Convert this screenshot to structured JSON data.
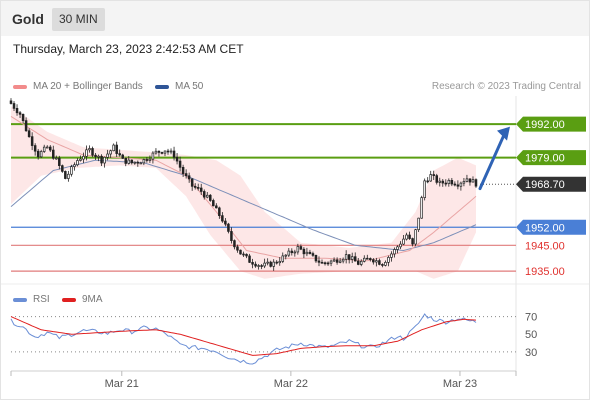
{
  "header": {
    "symbol": "Gold",
    "timeframe": "30 MIN",
    "datetime": "Thursday, March 23, 2023 2:42:53 AM CET"
  },
  "legend": {
    "items": [
      {
        "label": "MA 20 + Bollinger Bands",
        "color": "#f28b8b"
      },
      {
        "label": "MA 50",
        "color": "#2f5597"
      }
    ],
    "credit": "Research © 2023 Trading Central"
  },
  "colors": {
    "resistance": "#5a9e12",
    "support": "#4a7fd6",
    "support2": "#e07b7b",
    "current": "#333333",
    "bb_fill": "#fde3e3",
    "ma20": "#e9a4a4",
    "ma50": "#7c8fb8",
    "candle": "#222222",
    "arrow": "#2f63b5"
  },
  "chart_data": [
    {
      "type": "candlestick",
      "title": "",
      "ylim": [
        1930,
        2006
      ],
      "x_ticks": [
        "Mar 21",
        "Mar 22",
        "Mar 23"
      ],
      "levels": [
        {
          "value": 1992.0,
          "label": "1992.00",
          "kind": "resistance"
        },
        {
          "value": 1979.0,
          "label": "1979.00",
          "kind": "resistance"
        },
        {
          "value": 1968.7,
          "label": "1968.70",
          "kind": "current"
        },
        {
          "value": 1952.0,
          "label": "1952.00",
          "kind": "support"
        },
        {
          "value": 1945.0,
          "label": "1945.00",
          "kind": "support2"
        },
        {
          "value": 1935.0,
          "label": "1935.00",
          "kind": "support2"
        }
      ],
      "close_key": [
        [
          0,
          2000
        ],
        [
          3,
          1996
        ],
        [
          6,
          1987
        ],
        [
          9,
          1980
        ],
        [
          12,
          1983
        ],
        [
          15,
          1978
        ],
        [
          18,
          1971
        ],
        [
          22,
          1978
        ],
        [
          26,
          1982
        ],
        [
          30,
          1978
        ],
        [
          34,
          1983
        ],
        [
          37,
          1978
        ],
        [
          40,
          1977
        ],
        [
          44,
          1978
        ],
        [
          48,
          1981
        ],
        [
          51,
          1982
        ],
        [
          54,
          1980
        ],
        [
          57,
          1973
        ],
        [
          60,
          1968
        ],
        [
          63,
          1966
        ],
        [
          66,
          1962
        ],
        [
          70,
          1955
        ],
        [
          73,
          1947
        ],
        [
          76,
          1942
        ],
        [
          79,
          1939
        ],
        [
          83,
          1937
        ],
        [
          87,
          1938
        ],
        [
          91,
          1941
        ],
        [
          95,
          1944
        ],
        [
          99,
          1941
        ],
        [
          103,
          1938
        ],
        [
          107,
          1939
        ],
        [
          111,
          1941
        ],
        [
          115,
          1938
        ],
        [
          119,
          1940
        ],
        [
          123,
          1938
        ],
        [
          127,
          1943
        ],
        [
          131,
          1949
        ],
        [
          133,
          1945
        ],
        [
          135,
          1956
        ],
        [
          137,
          1970
        ],
        [
          139,
          1972
        ],
        [
          142,
          1969
        ],
        [
          145,
          1970
        ],
        [
          148,
          1969
        ],
        [
          151,
          1971
        ],
        [
          154,
          1969
        ]
      ],
      "ma20_key": [
        [
          0,
          1995
        ],
        [
          12,
          1986
        ],
        [
          24,
          1980
        ],
        [
          36,
          1979
        ],
        [
          48,
          1978
        ],
        [
          58,
          1972
        ],
        [
          68,
          1958
        ],
        [
          78,
          1943
        ],
        [
          90,
          1940
        ],
        [
          104,
          1940
        ],
        [
          118,
          1939
        ],
        [
          132,
          1943
        ],
        [
          140,
          1950
        ],
        [
          154,
          1964
        ]
      ],
      "ma50_key": [
        [
          0,
          1960
        ],
        [
          14,
          1974
        ],
        [
          28,
          1978
        ],
        [
          44,
          1977
        ],
        [
          58,
          1972
        ],
        [
          72,
          1965
        ],
        [
          86,
          1958
        ],
        [
          100,
          1951
        ],
        [
          114,
          1945
        ],
        [
          130,
          1943
        ],
        [
          140,
          1946
        ],
        [
          154,
          1953
        ]
      ],
      "bb_upper_key": [
        [
          0,
          1999
        ],
        [
          12,
          1989
        ],
        [
          24,
          1983
        ],
        [
          36,
          1982
        ],
        [
          48,
          1981
        ],
        [
          58,
          1980
        ],
        [
          68,
          1978
        ],
        [
          76,
          1972
        ],
        [
          84,
          1958
        ],
        [
          96,
          1946
        ],
        [
          112,
          1944
        ],
        [
          126,
          1946
        ],
        [
          134,
          1958
        ],
        [
          140,
          1974
        ],
        [
          148,
          1979
        ],
        [
          154,
          1976
        ]
      ],
      "bb_lower_key": [
        [
          0,
          1961
        ],
        [
          10,
          1972
        ],
        [
          22,
          1975
        ],
        [
          36,
          1976
        ],
        [
          48,
          1975
        ],
        [
          58,
          1964
        ],
        [
          66,
          1949
        ],
        [
          76,
          1935
        ],
        [
          84,
          1932
        ],
        [
          96,
          1934
        ],
        [
          112,
          1935
        ],
        [
          126,
          1935
        ],
        [
          134,
          1935
        ],
        [
          140,
          1932
        ],
        [
          148,
          1935
        ],
        [
          154,
          1950
        ]
      ],
      "projection": {
        "from": 1967,
        "to": 1991
      }
    },
    {
      "type": "line",
      "title": "",
      "legend": [
        "RSI",
        "9MA"
      ],
      "ylim": [
        14,
        82
      ],
      "y_ticks": [
        30,
        50,
        70
      ],
      "levels": [
        {
          "value": 70
        },
        {
          "value": 30
        }
      ],
      "rsi_key": [
        [
          0,
          65
        ],
        [
          4,
          58
        ],
        [
          8,
          47
        ],
        [
          12,
          52
        ],
        [
          16,
          46
        ],
        [
          20,
          50
        ],
        [
          24,
          54
        ],
        [
          28,
          53
        ],
        [
          32,
          51
        ],
        [
          36,
          55
        ],
        [
          40,
          53
        ],
        [
          44,
          57
        ],
        [
          48,
          56
        ],
        [
          52,
          49
        ],
        [
          56,
          38
        ],
        [
          60,
          35
        ],
        [
          64,
          34
        ],
        [
          68,
          31
        ],
        [
          72,
          24
        ],
        [
          76,
          20
        ],
        [
          80,
          18
        ],
        [
          84,
          25
        ],
        [
          88,
          32
        ],
        [
          92,
          36
        ],
        [
          96,
          40
        ],
        [
          100,
          37
        ],
        [
          104,
          35
        ],
        [
          108,
          38
        ],
        [
          112,
          42
        ],
        [
          116,
          37
        ],
        [
          120,
          35
        ],
        [
          124,
          41
        ],
        [
          128,
          48
        ],
        [
          130,
          45
        ],
        [
          134,
          58
        ],
        [
          137,
          72
        ],
        [
          140,
          67
        ],
        [
          144,
          64
        ],
        [
          148,
          68
        ],
        [
          152,
          65
        ],
        [
          154,
          64
        ]
      ],
      "rsi_ma_key": [
        [
          0,
          70
        ],
        [
          10,
          55
        ],
        [
          20,
          50
        ],
        [
          30,
          52
        ],
        [
          40,
          54
        ],
        [
          48,
          55
        ],
        [
          56,
          50
        ],
        [
          64,
          42
        ],
        [
          72,
          34
        ],
        [
          80,
          26
        ],
        [
          88,
          28
        ],
        [
          96,
          34
        ],
        [
          104,
          36
        ],
        [
          112,
          37
        ],
        [
          120,
          37
        ],
        [
          128,
          42
        ],
        [
          136,
          55
        ],
        [
          144,
          64
        ],
        [
          150,
          67
        ],
        [
          154,
          66
        ]
      ]
    }
  ]
}
